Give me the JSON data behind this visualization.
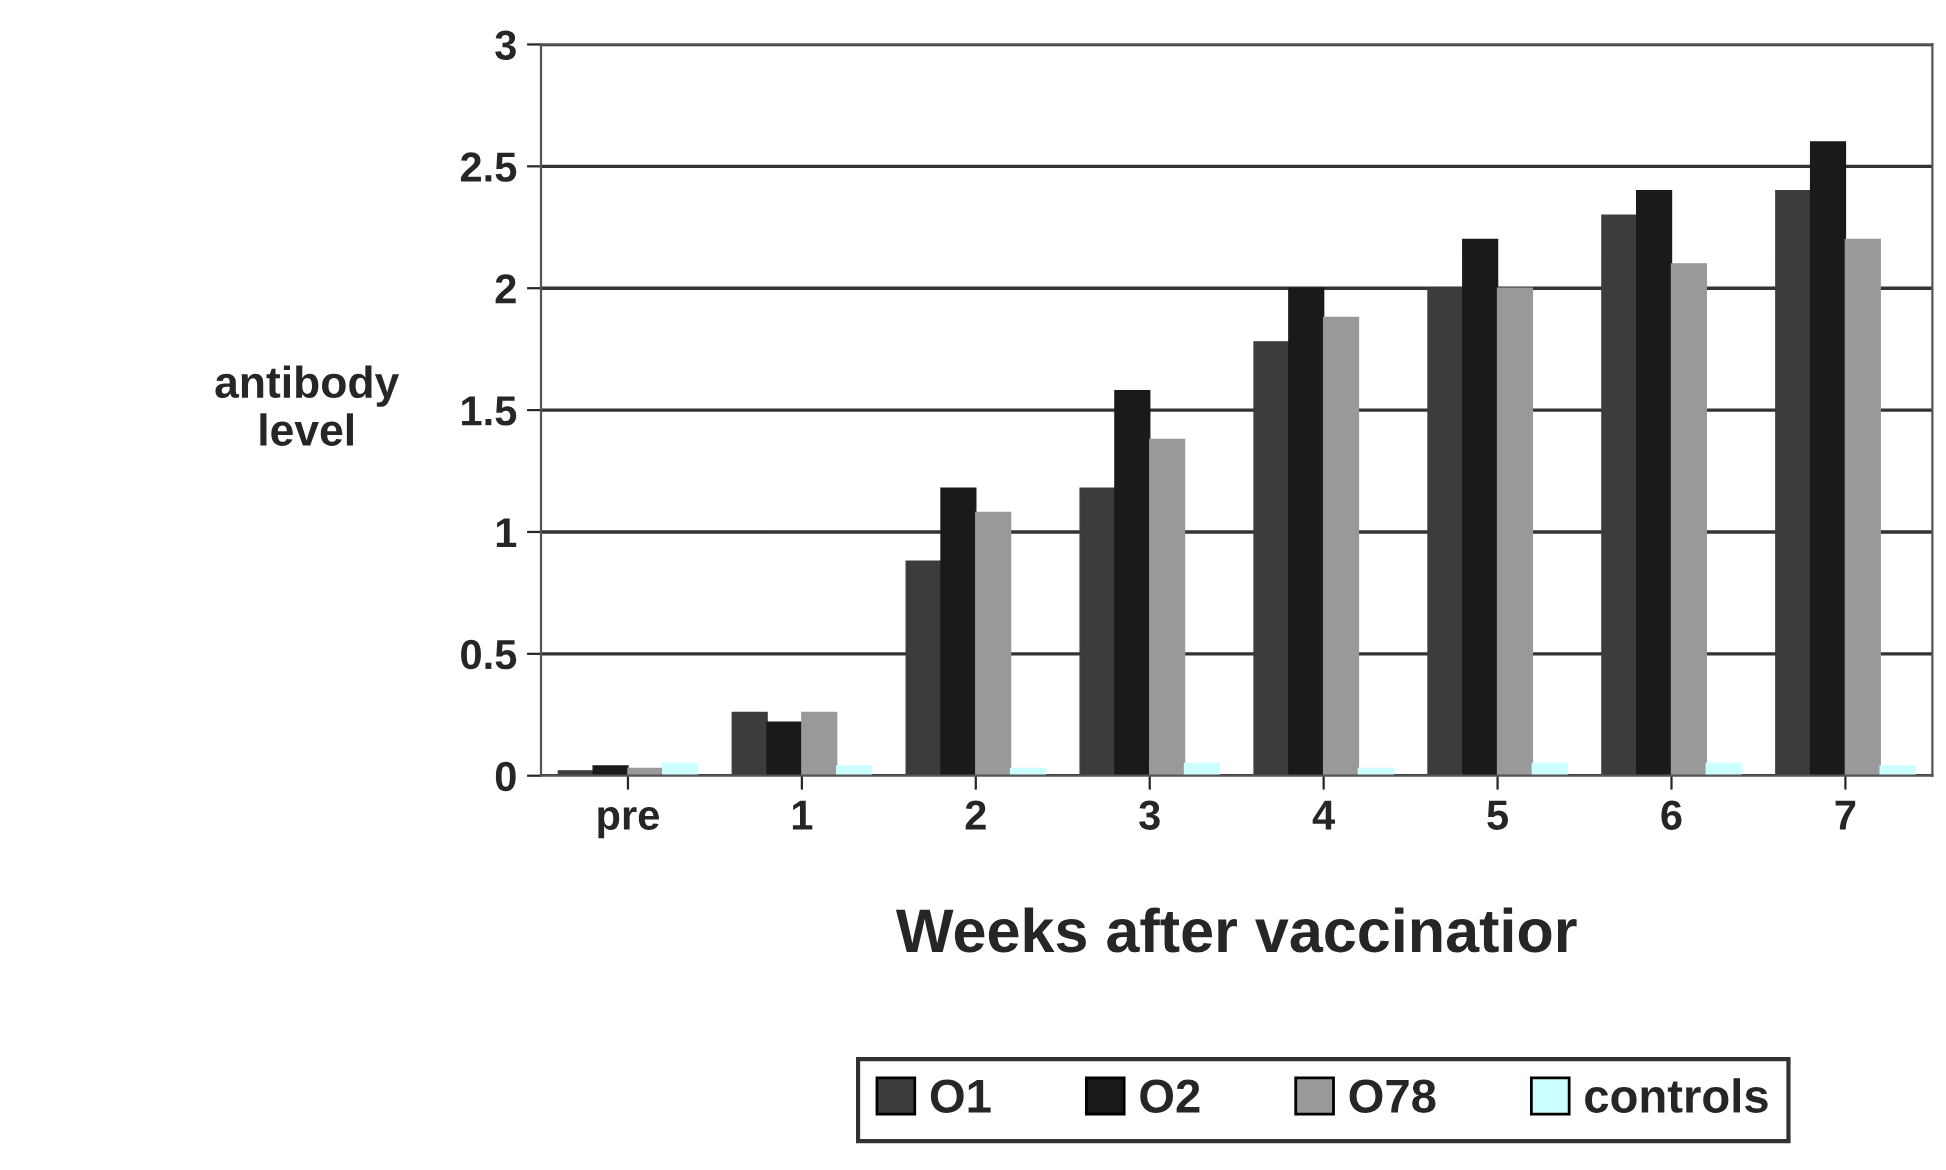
{
  "chart_data": {
    "type": "bar",
    "xlabel": "Weeks after vaccinatior",
    "ylabel": "antibody\nlevel",
    "categories": [
      "pre",
      "1",
      "2",
      "3",
      "4",
      "5",
      "6",
      "7"
    ],
    "series": [
      {
        "name": "O1",
        "color": "#3c3c3c",
        "values": [
          0.02,
          0.26,
          0.88,
          1.18,
          1.78,
          2.0,
          2.3,
          2.4
        ]
      },
      {
        "name": "O2",
        "color": "#1a1a1a",
        "values": [
          0.04,
          0.22,
          1.18,
          1.58,
          2.0,
          2.2,
          2.4,
          2.6
        ]
      },
      {
        "name": "O78",
        "color": "#999999",
        "values": [
          0.03,
          0.26,
          1.08,
          1.38,
          1.88,
          2.0,
          2.1,
          2.2
        ]
      },
      {
        "name": "controls",
        "color": "#ccffff",
        "values": [
          0.05,
          0.04,
          0.03,
          0.05,
          0.03,
          0.05,
          0.05,
          0.04
        ]
      }
    ],
    "ylim": [
      0,
      3
    ],
    "yticks": [
      0,
      0.5,
      1,
      1.5,
      2,
      2.5,
      3
    ],
    "grid": "y",
    "legend": "bottom"
  }
}
